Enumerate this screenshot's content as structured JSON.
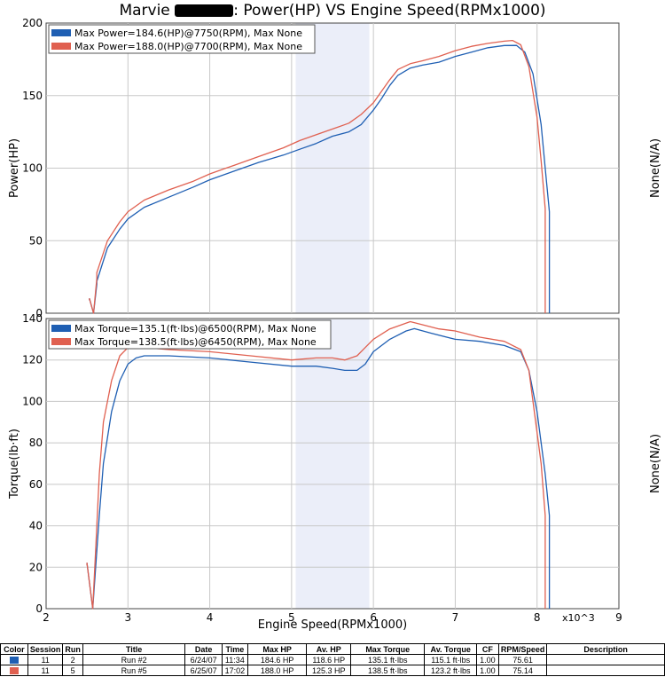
{
  "title_prefix": "Marvie",
  "title_suffix": ": Power(HP) VS Engine Speed(RPMx1000)",
  "colors": {
    "run2": "#1f5fb3",
    "run5": "#e06050",
    "band": "#dde3f5"
  },
  "x_label": "Engine Speed(RPMx1000)",
  "x_multiplier": "x10^3",
  "chart_data": [
    {
      "type": "line",
      "ylabel": "Power(HP)",
      "right_label": "None(N/A)",
      "xlim": [
        2,
        9
      ],
      "ylim": [
        0,
        200
      ],
      "x_ticks": [
        "2",
        "3",
        "4",
        "5",
        "6",
        "7",
        "8",
        "9"
      ],
      "y_ticks": [
        "0",
        "50",
        "100",
        "150",
        "200"
      ],
      "grid": true,
      "legend_position": "top-left",
      "series": [
        {
          "name": "Max Power=184.6(HP)@7750(RPM), Max None",
          "color": "#1f5fb3",
          "x": [
            2.53,
            2.53,
            2.58,
            2.62,
            2.62,
            2.75,
            2.9,
            3.0,
            3.2,
            3.5,
            3.8,
            4.0,
            4.3,
            4.6,
            4.9,
            5.1,
            5.3,
            5.5,
            5.7,
            5.85,
            6.0,
            6.1,
            6.2,
            6.3,
            6.45,
            6.6,
            6.8,
            7.0,
            7.2,
            7.4,
            7.6,
            7.75,
            7.85,
            7.95,
            8.05,
            8.1,
            8.15,
            8.15
          ],
          "y": [
            9,
            10,
            0,
            20,
            22,
            45,
            58,
            65,
            73,
            80,
            87,
            92,
            98,
            104,
            109,
            113,
            117,
            122,
            125,
            130,
            140,
            148,
            157,
            164,
            169,
            171,
            173,
            177,
            180,
            183,
            184.5,
            184.6,
            180,
            165,
            130,
            100,
            70,
            0
          ]
        },
        {
          "name": "Max Power=188.0(HP)@7700(RPM), Max None",
          "color": "#e06050",
          "x": [
            2.53,
            2.53,
            2.58,
            2.62,
            2.62,
            2.75,
            2.9,
            3.0,
            3.2,
            3.5,
            3.8,
            4.0,
            4.3,
            4.6,
            4.9,
            5.1,
            5.3,
            5.5,
            5.7,
            5.85,
            6.0,
            6.1,
            6.2,
            6.3,
            6.45,
            6.6,
            6.8,
            7.0,
            7.2,
            7.4,
            7.6,
            7.7,
            7.8,
            7.9,
            8.0,
            8.05,
            8.1,
            8.1
          ],
          "y": [
            9,
            10,
            0,
            24,
            28,
            50,
            63,
            70,
            78,
            85,
            91,
            96,
            102,
            108,
            114,
            119,
            123,
            127,
            131,
            137,
            145,
            153,
            161,
            168,
            172,
            174,
            177,
            181,
            184,
            186,
            187.5,
            188,
            185,
            170,
            135,
            105,
            72,
            0
          ]
        }
      ]
    },
    {
      "type": "line",
      "ylabel": "Torque(lb·ft)",
      "right_label": "None(N/A)",
      "xlim": [
        2,
        9
      ],
      "ylim": [
        0,
        140
      ],
      "x_ticks": [
        "2",
        "3",
        "4",
        "5",
        "6",
        "7",
        "8",
        "9"
      ],
      "y_ticks": [
        "0",
        "20",
        "40",
        "60",
        "80",
        "100",
        "120",
        "140"
      ],
      "grid": true,
      "legend_position": "top-left",
      "series": [
        {
          "name": "Max Torque=135.1(ft·lbs)@6500(RPM), Max None",
          "color": "#1f5fb3",
          "x": [
            2.5,
            2.5,
            2.57,
            2.62,
            2.65,
            2.7,
            2.8,
            2.9,
            3.0,
            3.1,
            3.2,
            3.5,
            4.0,
            4.5,
            5.0,
            5.3,
            5.5,
            5.65,
            5.8,
            5.9,
            6.0,
            6.2,
            6.4,
            6.5,
            6.7,
            7.0,
            7.3,
            7.6,
            7.8,
            7.9,
            8.0,
            8.05,
            8.1,
            8.15,
            8.15
          ],
          "y": [
            21,
            22,
            0,
            28,
            45,
            70,
            95,
            110,
            118,
            121,
            122,
            122,
            121,
            119,
            117,
            117,
            116,
            115,
            115,
            118,
            124,
            130,
            134,
            135.1,
            133,
            130,
            129,
            127,
            124,
            115,
            95,
            80,
            65,
            45,
            0
          ]
        },
        {
          "name": "Max Torque=138.5(ft·lbs)@6450(RPM), Max None",
          "color": "#e06050",
          "x": [
            2.5,
            2.5,
            2.57,
            2.62,
            2.65,
            2.7,
            2.8,
            2.9,
            3.0,
            3.1,
            3.2,
            3.5,
            4.0,
            4.5,
            5.0,
            5.3,
            5.5,
            5.65,
            5.8,
            5.9,
            6.0,
            6.2,
            6.45,
            6.6,
            6.8,
            7.0,
            7.3,
            7.6,
            7.8,
            7.9,
            7.95,
            8.0,
            8.05,
            8.1,
            8.1
          ],
          "y": [
            21,
            22,
            0,
            40,
            65,
            90,
            110,
            122,
            126,
            126,
            126,
            125,
            124,
            122,
            120,
            121,
            121,
            120,
            122,
            126,
            130,
            135,
            138.5,
            137,
            135,
            134,
            131,
            129,
            125,
            115,
            100,
            85,
            70,
            45,
            0
          ]
        }
      ]
    }
  ],
  "table": {
    "headers": [
      "Color",
      "Session",
      "Run",
      "Title",
      "Date",
      "Time",
      "Max HP",
      "Av. HP",
      "Max Torque",
      "Av. Torque",
      "CF",
      "RPM/Speed",
      "Description"
    ],
    "rows": [
      {
        "color": "#1f5fb3",
        "cells": [
          "11",
          "2",
          "Run #2",
          "6/24/07",
          "11:34",
          "184.6 HP",
          "118.6 HP",
          "135.1 ft·lbs",
          "115.1 ft·lbs",
          "1.00",
          "75.61",
          ""
        ]
      },
      {
        "color": "#e06050",
        "cells": [
          "11",
          "5",
          "Run #5",
          "6/25/07",
          "17:02",
          "188.0 HP",
          "125.3 HP",
          "138.5 ft·lbs",
          "123.2 ft·lbs",
          "1.00",
          "75.14",
          ""
        ]
      }
    ]
  }
}
